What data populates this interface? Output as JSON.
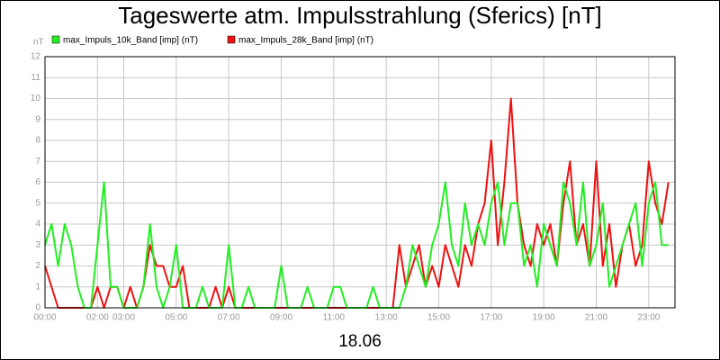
{
  "chart_data": {
    "type": "line",
    "title": "Tageswerte atm. Impulsstrahlung (Sferics) [nT]",
    "subtitle": "18.06",
    "y_label": "nT",
    "xlim": [
      0,
      24
    ],
    "xticks": [
      {
        "value": 0,
        "label": "00:00"
      },
      {
        "value": 2,
        "label": "02:00"
      },
      {
        "value": 3,
        "label": "03:00"
      },
      {
        "value": 5,
        "label": "05:00"
      },
      {
        "value": 7,
        "label": "07:00"
      },
      {
        "value": 9,
        "label": "09:00"
      },
      {
        "value": 11,
        "label": "11:00"
      },
      {
        "value": 13,
        "label": "13:00"
      },
      {
        "value": 15,
        "label": "15:00"
      },
      {
        "value": 17,
        "label": "17:00"
      },
      {
        "value": 19,
        "label": "19:00"
      },
      {
        "value": 21,
        "label": "21:00"
      },
      {
        "value": 23,
        "label": "23:00"
      }
    ],
    "ylim": [
      0,
      12
    ],
    "yticks": [
      0,
      1,
      2,
      3,
      4,
      5,
      6,
      7,
      8,
      9,
      10,
      11,
      12
    ],
    "grid": true,
    "x": [
      0,
      0.25,
      0.5,
      0.75,
      1,
      1.25,
      1.5,
      1.75,
      2,
      2.25,
      2.5,
      2.75,
      3,
      3.25,
      3.5,
      3.75,
      4,
      4.25,
      4.5,
      4.75,
      5,
      5.25,
      5.5,
      5.75,
      6,
      6.25,
      6.5,
      6.75,
      7,
      7.25,
      7.5,
      7.75,
      8,
      8.25,
      8.5,
      8.75,
      9,
      9.25,
      9.5,
      9.75,
      10,
      10.25,
      10.5,
      10.75,
      11,
      11.25,
      11.5,
      11.75,
      12,
      12.25,
      12.5,
      12.75,
      13,
      13.25,
      13.5,
      13.75,
      14,
      14.25,
      14.5,
      14.75,
      15,
      15.25,
      15.5,
      15.75,
      16,
      16.25,
      16.5,
      16.75,
      17,
      17.25,
      17.5,
      17.75,
      18,
      18.25,
      18.5,
      18.75,
      19,
      19.25,
      19.5,
      19.75,
      20,
      20.25,
      20.5,
      20.75,
      21,
      21.25,
      21.5,
      21.75,
      22,
      22.25,
      22.5,
      22.75,
      23,
      23.25,
      23.5,
      23.75
    ],
    "series": [
      {
        "name": "max_Impuls_10k_Band [imp] (nT)",
        "color": "#22ee22",
        "values": [
          3,
          4,
          2,
          4,
          3,
          1,
          0,
          0,
          3,
          6,
          1,
          1,
          0,
          0,
          0,
          1,
          4,
          1,
          0,
          1,
          3,
          0,
          0,
          0,
          1,
          0,
          0,
          0,
          3,
          0,
          0,
          1,
          0,
          0,
          0,
          0,
          2,
          0,
          0,
          0,
          1,
          0,
          0,
          0,
          1,
          1,
          0,
          0,
          0,
          0,
          1,
          0,
          0,
          0,
          0,
          1,
          3,
          2,
          1,
          3,
          4,
          6,
          3,
          2,
          5,
          3,
          4,
          3,
          5,
          6,
          3,
          5,
          5,
          2,
          3,
          1,
          4,
          3,
          2,
          6,
          5,
          3,
          6,
          2,
          3,
          5,
          1,
          2,
          3,
          4,
          5,
          2,
          5,
          6,
          3,
          3
        ]
      },
      {
        "name": "max_Impuls_28k_Band [imp] (nT)",
        "color": "#ee1111",
        "values": [
          2,
          1,
          0,
          0,
          0,
          0,
          0,
          0,
          1,
          0,
          1,
          1,
          0,
          1,
          0,
          1,
          3,
          2,
          2,
          1,
          1,
          2,
          0,
          0,
          0,
          0,
          1,
          0,
          1,
          0,
          0,
          0,
          0,
          0,
          0,
          0,
          0,
          0,
          0,
          0,
          0,
          0,
          0,
          0,
          0,
          0,
          0,
          0,
          0,
          0,
          0,
          0,
          0,
          0,
          3,
          1,
          2,
          3,
          1,
          2,
          1,
          3,
          2,
          1,
          3,
          2,
          4,
          5,
          8,
          3,
          6,
          10,
          5,
          3,
          2,
          4,
          3,
          4,
          2,
          5,
          7,
          3,
          4,
          2,
          7,
          2,
          4,
          1,
          3,
          4,
          2,
          3,
          7,
          5,
          4,
          6
        ]
      }
    ]
  }
}
